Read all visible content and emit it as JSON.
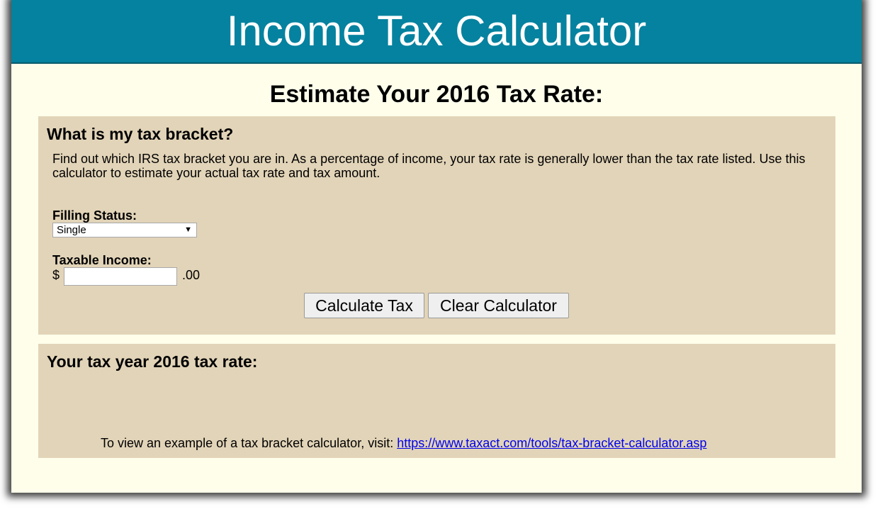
{
  "header": {
    "title": "Income Tax Calculator"
  },
  "page": {
    "subtitle": "Estimate Your 2016 Tax Rate:"
  },
  "bracket_panel": {
    "title": "What is my tax bracket?",
    "description": "Find out which IRS tax bracket you are in. As a percentage of income, your tax rate is generally lower than the tax rate listed. Use this calculator to estimate your actual tax rate and tax amount.",
    "filing_status": {
      "label": "Filling Status:",
      "selected": "Single",
      "arrow": "▼"
    },
    "taxable_income": {
      "label": "Taxable Income:",
      "prefix": "$",
      "value": "",
      "suffix": ".00"
    },
    "buttons": {
      "calculate": "Calculate Tax",
      "clear": "Clear Calculator"
    }
  },
  "result_panel": {
    "title": "Your tax year 2016 tax rate:",
    "example_text": "To view an example of a tax bracket calculator, visit:",
    "example_link": "https://www.taxact.com/tools/tax-bracket-calculator.asp"
  },
  "colors": {
    "banner": "#05829f",
    "page_background": "#fefeeb",
    "panel_background": "#e2d4b8",
    "link": "#0000ee"
  }
}
